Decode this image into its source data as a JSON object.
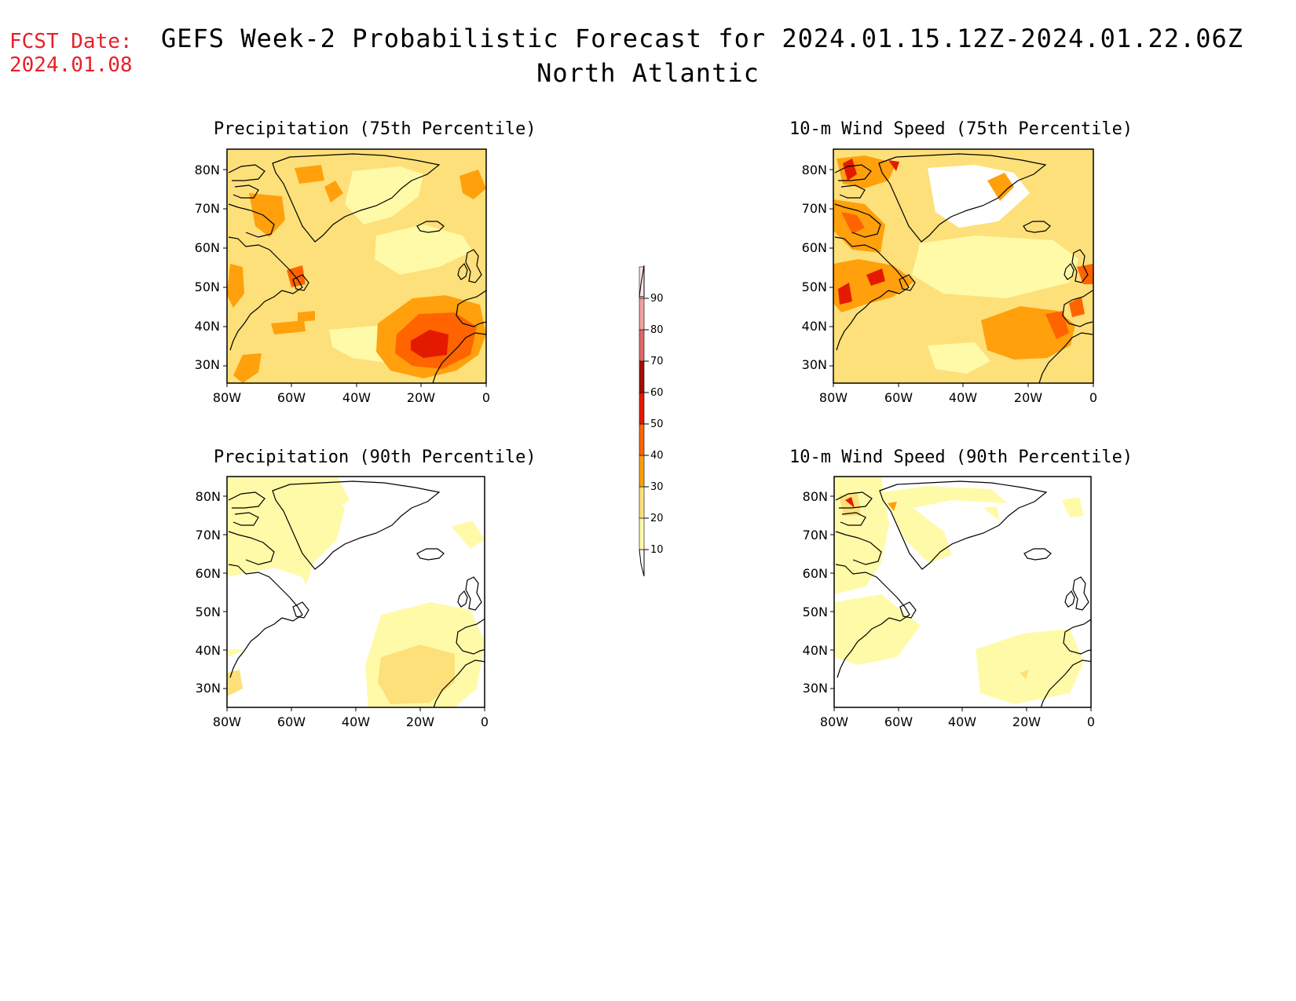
{
  "header": {
    "fcst_label": "FCST Date:",
    "fcst_date": "2024.01.08",
    "title": "GEFS Week-2 Probabilistic Forecast for 2024.01.15.12Z-2024.01.22.06Z",
    "subtitle": "North Atlantic"
  },
  "panels": [
    {
      "title": "Precipitation (75th Percentile)"
    },
    {
      "title": "10-m Wind Speed (75th Percentile)"
    },
    {
      "title": "Precipitation (90th Percentile)"
    },
    {
      "title": "10-m Wind Speed (90th Percentile)"
    }
  ],
  "axes": {
    "lat_labels": [
      "80N",
      "70N",
      "60N",
      "50N",
      "40N",
      "30N"
    ],
    "lon_labels": [
      "80W",
      "60W",
      "40W",
      "20W",
      "0"
    ]
  },
  "colorbar": {
    "levels": [
      "10",
      "20",
      "30",
      "40",
      "50",
      "60",
      "70",
      "80",
      "90"
    ],
    "colors": [
      "#fffaa8",
      "#fde07a",
      "#ffa00c",
      "#ff6400",
      "#e41a00",
      "#a50e00",
      "#e06868",
      "#f4a0a0",
      "#fde4e4"
    ]
  }
}
